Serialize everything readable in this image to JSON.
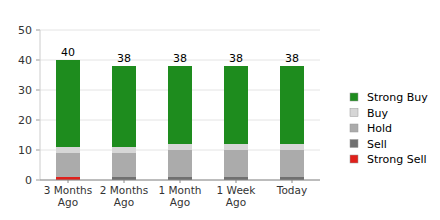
{
  "chart_data": {
    "type": "bar",
    "stacked": true,
    "categories": [
      "3 Months Ago",
      "2 Months Ago",
      "1 Month Ago",
      "1 Week Ago",
      "Today"
    ],
    "series": [
      {
        "name": "Strong Sell",
        "color": "#e0201b",
        "values": [
          1,
          0,
          0,
          0,
          0
        ]
      },
      {
        "name": "Sell",
        "color": "#707070",
        "values": [
          0,
          1,
          1,
          1,
          1
        ]
      },
      {
        "name": "Hold",
        "color": "#ababab",
        "values": [
          8,
          8,
          9,
          9,
          9
        ]
      },
      {
        "name": "Buy",
        "color": "#d6d6d6",
        "values": [
          2,
          2,
          2,
          2,
          2
        ]
      },
      {
        "name": "Strong Buy",
        "color": "#1e8c1e",
        "values": [
          29,
          27,
          26,
          26,
          26
        ]
      }
    ],
    "totals": [
      40,
      38,
      38,
      38,
      38
    ],
    "ylim": [
      0,
      50
    ],
    "yticks": [
      0,
      10,
      20,
      30,
      40,
      50
    ],
    "grid": true,
    "legend": "right"
  }
}
